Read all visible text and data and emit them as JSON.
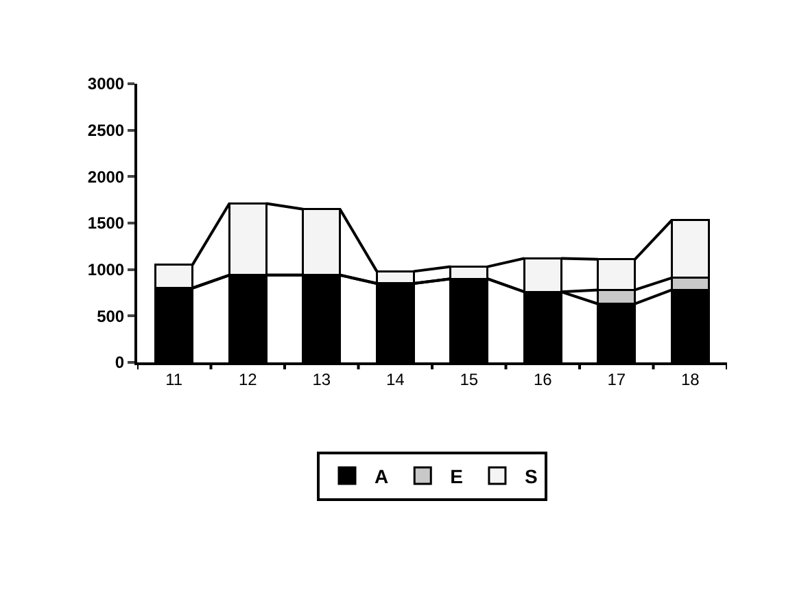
{
  "chart_data": {
    "type": "bar",
    "stacked": true,
    "categories": [
      "11",
      "12",
      "13",
      "14",
      "15",
      "16",
      "17",
      "18"
    ],
    "series": [
      {
        "name": "A",
        "color": "#000000",
        "values": [
          800,
          940,
          940,
          850,
          900,
          760,
          630,
          780
        ]
      },
      {
        "name": "E",
        "color": "#c8c8c8",
        "values": [
          0,
          0,
          0,
          0,
          0,
          0,
          150,
          130
        ]
      },
      {
        "name": "S",
        "color": "#f4f4f4",
        "values": [
          250,
          770,
          710,
          130,
          130,
          360,
          330,
          620
        ]
      }
    ],
    "ylim": [
      0,
      3000
    ],
    "yticks": [
      0,
      500,
      1000,
      1500,
      2000,
      2500,
      3000
    ],
    "grid": false,
    "legend": "bottom"
  }
}
